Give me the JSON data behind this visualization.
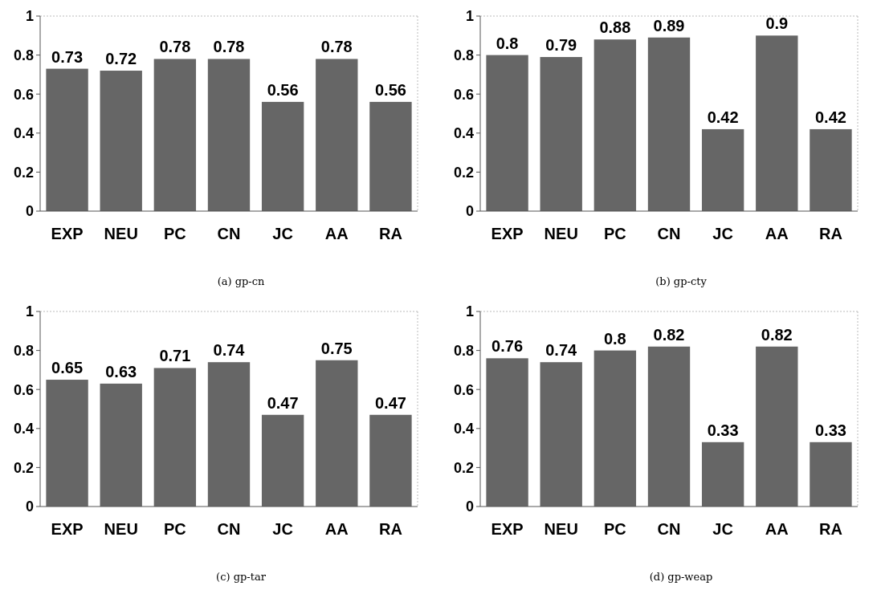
{
  "chart_data": [
    {
      "type": "bar",
      "title": "(a)  gp-cn",
      "categories": [
        "EXP",
        "NEU",
        "PC",
        "CN",
        "JC",
        "AA",
        "RA"
      ],
      "values": [
        0.73,
        0.72,
        0.78,
        0.78,
        0.56,
        0.78,
        0.56
      ],
      "color": "#666666",
      "ylim": [
        0,
        1
      ],
      "yticks": [
        0,
        0.2,
        0.4,
        0.6,
        0.8,
        1
      ],
      "data_labels": true
    },
    {
      "type": "bar",
      "title": "(b)  gp-cty",
      "categories": [
        "EXP",
        "NEU",
        "PC",
        "CN",
        "JC",
        "AA",
        "RA"
      ],
      "values": [
        0.8,
        0.79,
        0.88,
        0.89,
        0.42,
        0.9,
        0.42
      ],
      "color": "#666666",
      "ylim": [
        0,
        1
      ],
      "yticks": [
        0,
        0.2,
        0.4,
        0.6,
        0.8,
        1
      ],
      "data_labels": true
    },
    {
      "type": "bar",
      "title": "(c)  gp-tar",
      "categories": [
        "EXP",
        "NEU",
        "PC",
        "CN",
        "JC",
        "AA",
        "RA"
      ],
      "values": [
        0.65,
        0.63,
        0.71,
        0.74,
        0.47,
        0.75,
        0.47
      ],
      "color": "#666666",
      "ylim": [
        0,
        1
      ],
      "yticks": [
        0,
        0.2,
        0.4,
        0.6,
        0.8,
        1
      ],
      "data_labels": true
    },
    {
      "type": "bar",
      "title": "(d)  gp-weap",
      "categories": [
        "EXP",
        "NEU",
        "PC",
        "CN",
        "JC",
        "AA",
        "RA"
      ],
      "values": [
        0.76,
        0.74,
        0.8,
        0.82,
        0.33,
        0.82,
        0.33
      ],
      "color": "#666666",
      "ylim": [
        0,
        1
      ],
      "yticks": [
        0,
        0.2,
        0.4,
        0.6,
        0.8,
        1
      ],
      "data_labels": true
    }
  ]
}
